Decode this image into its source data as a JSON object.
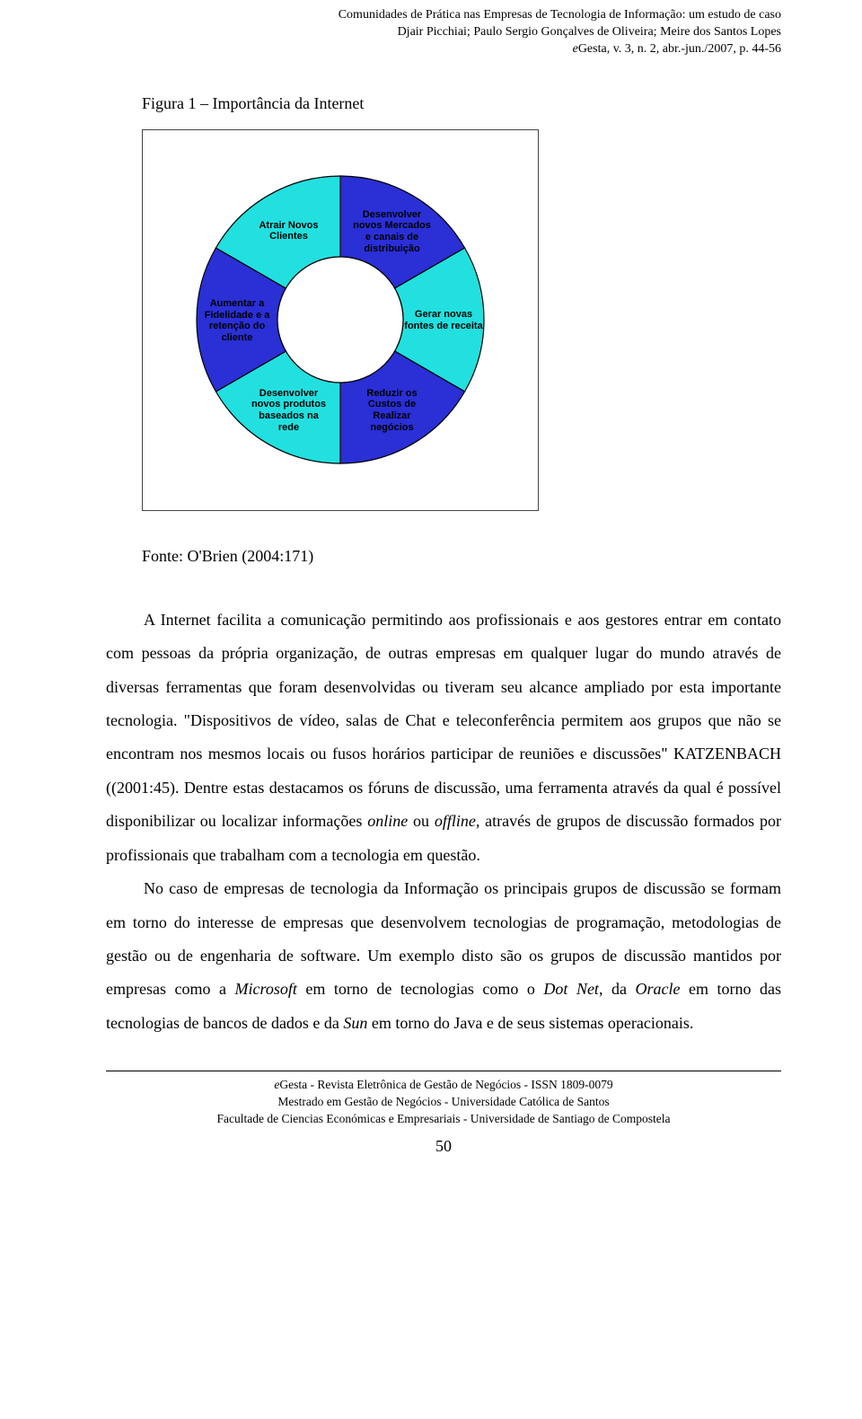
{
  "running_head": {
    "line1": "Comunidades de Prática nas Empresas de Tecnologia de Informação: um estudo de caso",
    "line2": "Djair Picchiai; Paulo Sergio Gonçalves de Oliveira; Meire dos Santos Lopes",
    "line3_prefix_italic": "e",
    "line3_rest": "Gesta, v. 3, n. 2, abr.-jun./2007, p. 44-56"
  },
  "figure": {
    "caption": "Figura 1 – Importância da Internet",
    "source": "Fonte: O'Brien (2004:171)",
    "chart": {
      "type": "donut",
      "segments": 6,
      "background_color": "#ffffff",
      "box_border_color": "#444444",
      "stroke_color": "#000000",
      "stroke_width": 1.2,
      "outer_radius": 160,
      "inner_radius": 70,
      "label_font_family": "Arial",
      "label_font_size": 11,
      "label_font_weight": "bold",
      "colors_alt": [
        "#2a2fd6",
        "#21e0df"
      ],
      "slices": [
        {
          "label_lines": [
            "Desenvolver",
            "novos Mercados",
            "e canais de",
            "distribuição"
          ],
          "start_deg": -90,
          "end_deg": -30,
          "color": "#2a2fd6",
          "text_color": "#000000"
        },
        {
          "label_lines": [
            "Gerar novas",
            "fontes de receita"
          ],
          "start_deg": -30,
          "end_deg": 30,
          "color": "#21e0df",
          "text_color": "#000000"
        },
        {
          "label_lines": [
            "Reduzir os",
            "Custos de",
            "Realizar",
            "negócios"
          ],
          "start_deg": 30,
          "end_deg": 90,
          "color": "#2a2fd6",
          "text_color": "#000000"
        },
        {
          "label_lines": [
            "Desenvolver",
            "novos produtos",
            "baseados na",
            "rede"
          ],
          "start_deg": 90,
          "end_deg": 150,
          "color": "#21e0df",
          "text_color": "#000000"
        },
        {
          "label_lines": [
            "Aumentar a",
            "Fidelidade e a",
            "retenção do",
            "cliente"
          ],
          "start_deg": 150,
          "end_deg": 210,
          "color": "#2a2fd6",
          "text_color": "#000000"
        },
        {
          "label_lines": [
            "Atrair Novos",
            "Clientes"
          ],
          "start_deg": 210,
          "end_deg": 270,
          "color": "#21e0df",
          "text_color": "#000000"
        }
      ]
    }
  },
  "body": {
    "p1_a": "A Internet facilita a comunicação permitindo aos profissionais e aos gestores entrar em contato com pessoas da própria organização, de outras empresas em qualquer lugar do mundo através de diversas ferramentas que foram desenvolvidas ou tiveram seu alcance ampliado por esta importante tecnologia. \"Dispositivos de vídeo, salas de Chat e teleconferência permitem aos grupos que não se encontram nos mesmos locais ou fusos horários participar de reuniões e discussões\" KATZENBACH ((2001:45).  Dentre estas destacamos os fóruns de discussão, uma ferramenta através da qual é possível disponibilizar ou localizar informações ",
    "p1_online": "online",
    "p1_b": " ou ",
    "p1_offline": "offline,",
    "p1_c": " através de grupos de discussão formados por profissionais que trabalham com a tecnologia em questão.",
    "p2_a": "No caso de empresas de tecnologia da Informação os principais grupos de discussão se formam em torno do interesse de empresas que desenvolvem tecnologias de programação, metodologias de gestão ou de engenharia de software. Um exemplo disto são os grupos de discussão mantidos por empresas como a ",
    "p2_ms": "Microsoft",
    "p2_b": " em torno de tecnologias como o ",
    "p2_dotnet": "Dot Net",
    "p2_c": ", da ",
    "p2_oracle": "Oracle",
    "p2_d": " em torno das tecnologias de bancos de dados e da ",
    "p2_sun": "Sun",
    "p2_e": " em torno do Java e de seus sistemas operacionais."
  },
  "footer": {
    "line1_prefix_italic": "e",
    "line1_rest": "Gesta - Revista Eletrônica de Gestão de Negócios - ISSN 1809-0079",
    "line2": "Mestrado em Gestão de Negócios - Universidade Católica de Santos",
    "line3": "Facultade de Ciencias Económicas e Empresariais - Universidade de Santiago de Compostela",
    "page_number": "50"
  }
}
